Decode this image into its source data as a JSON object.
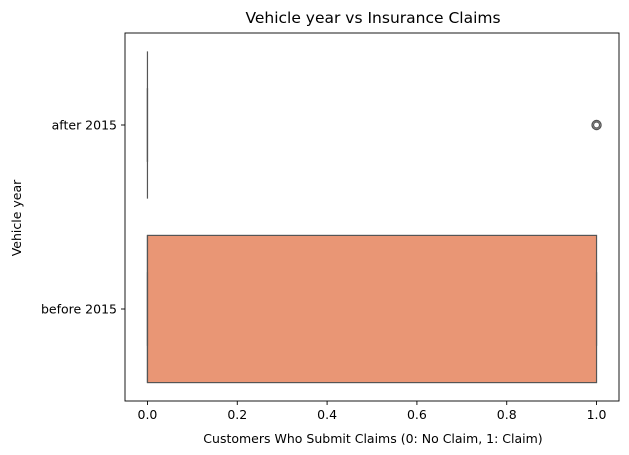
{
  "chart_data": {
    "type": "boxplot",
    "orientation": "horizontal",
    "title": "Vehicle year vs Insurance Claims",
    "xlabel": "Customers Who Submit Claims (0: No Claim, 1: Claim)",
    "ylabel": "Vehicle year",
    "xlim": [
      -0.05,
      1.05
    ],
    "xticks": [
      0.0,
      0.2,
      0.4,
      0.6,
      0.8,
      1.0
    ],
    "xtick_labels": [
      "0.0",
      "0.2",
      "0.4",
      "0.6",
      "0.8",
      "1.0"
    ],
    "categories": [
      "after 2015",
      "before 2015"
    ],
    "boxes": [
      {
        "category": "after 2015",
        "q1": 0,
        "median": 0,
        "q3": 0,
        "whisker_low": 0,
        "whisker_high": 0,
        "outliers": [
          1
        ],
        "color": "#66c2a5"
      },
      {
        "category": "before 2015",
        "q1": 0,
        "median": 0,
        "q3": 1,
        "whisker_low": 0,
        "whisker_high": 1,
        "outliers": [],
        "color": "#e99675"
      }
    ],
    "grid": false,
    "legend": "none"
  },
  "colors": {
    "line": "#555555",
    "box_before": "#e99675",
    "axes": "#000000"
  }
}
